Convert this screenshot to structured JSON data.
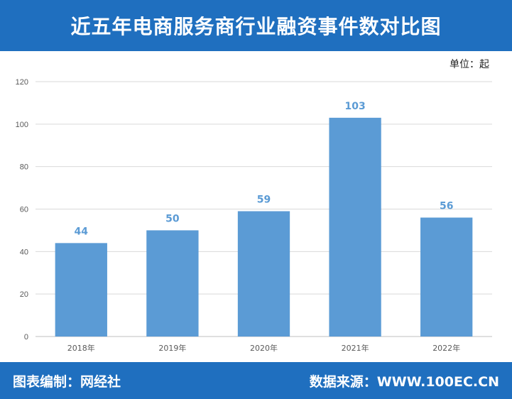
{
  "header": {
    "title": "近五年电商服务商行业融资事件数对比图"
  },
  "unit_label": "单位：起",
  "footer": {
    "left": "图表编制：网经社",
    "right": "数据来源：WWW.100EC.CN"
  },
  "colors": {
    "bar": "#5b9bd5",
    "label": "#5b9bd5",
    "header_bg": "#1f6fbf"
  },
  "chart_data": {
    "type": "bar",
    "categories": [
      "2018年",
      "2019年",
      "2020年",
      "2021年",
      "2022年"
    ],
    "values": [
      44,
      50,
      59,
      103,
      56
    ],
    "ylim": [
      0,
      120
    ],
    "yticks": [
      0,
      20,
      40,
      60,
      80,
      100,
      120
    ],
    "grid": true,
    "title": "",
    "xlabel": "",
    "ylabel": ""
  }
}
